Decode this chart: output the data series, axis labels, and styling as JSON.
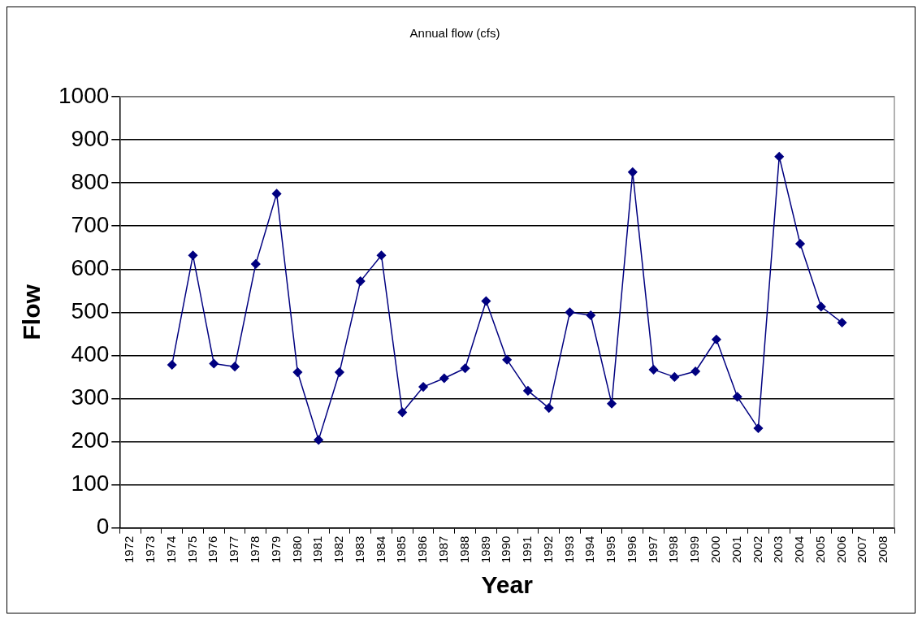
{
  "chart_data": {
    "type": "line",
    "title": "Annual flow (cfs)",
    "xlabel": "Year",
    "ylabel": "Flow",
    "categories": [
      "1972",
      "1973",
      "1974",
      "1975",
      "1976",
      "1977",
      "1978",
      "1979",
      "1980",
      "1981",
      "1982",
      "1983",
      "1984",
      "1985",
      "1986",
      "1987",
      "1988",
      "1989",
      "1990",
      "1991",
      "1992",
      "1993",
      "1994",
      "1995",
      "1996",
      "1997",
      "1998",
      "1999",
      "2000",
      "2001",
      "2002",
      "2003",
      "2004",
      "2005",
      "2006",
      "2007",
      "2008"
    ],
    "series": [
      {
        "color": "#000080",
        "values": [
          null,
          null,
          378,
          632,
          381,
          374,
          612,
          775,
          361,
          204,
          361,
          572,
          632,
          268,
          327,
          347,
          370,
          526,
          390,
          318,
          278,
          500,
          493,
          288,
          825,
          367,
          350,
          363,
          437,
          304,
          231,
          861,
          659,
          513,
          476,
          null,
          null
        ]
      }
    ],
    "ylim": [
      0,
      1000
    ],
    "yticks": [
      0,
      100,
      200,
      300,
      400,
      500,
      600,
      700,
      800,
      900,
      1000
    ],
    "grid": "y",
    "legend": false,
    "marker": "diamond",
    "line_style": "solid"
  }
}
